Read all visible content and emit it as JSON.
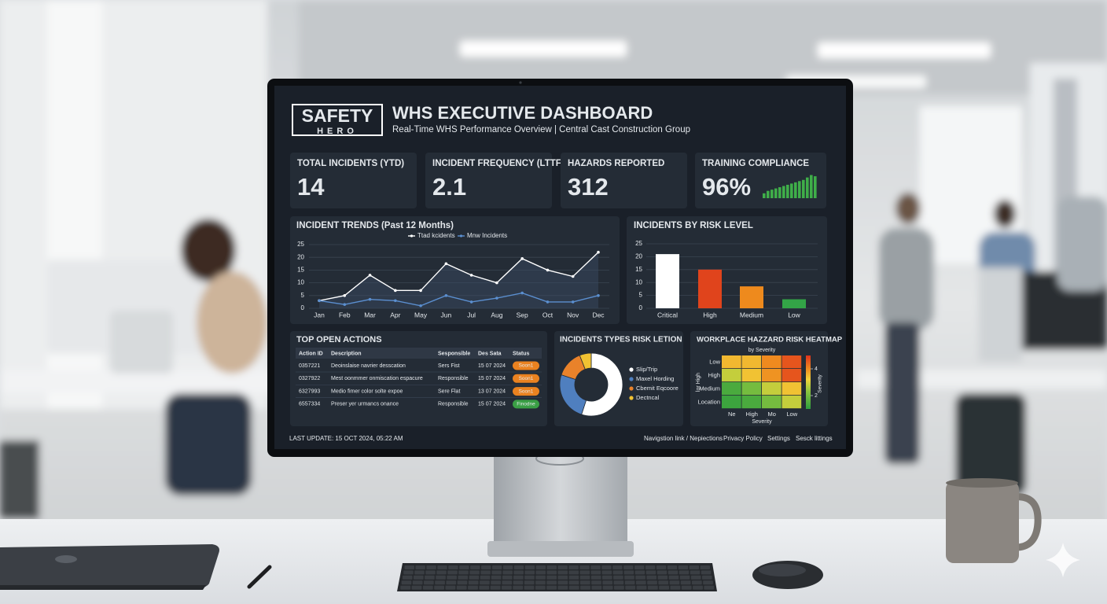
{
  "header": {
    "logo_top": "SAFETY",
    "logo_bottom": "HERO",
    "title": "WHS EXECUTIVE DASHBOARD",
    "subtitle": "Real-Time WHS Performance Overview | Central Cast Construction Group"
  },
  "kpis": [
    {
      "label": "TOTAL INCIDENTS (YTD)",
      "value": "14"
    },
    {
      "label": "INCIDENT FREQUENCY (LTTFR)",
      "value": "2.1"
    },
    {
      "label": "HAZARDS REPORTED",
      "value": "312"
    },
    {
      "label": "TRAINING COMPLIANCE",
      "value": "96%",
      "trend": [
        2,
        3,
        3.5,
        4,
        4.5,
        5,
        5.5,
        6,
        6.5,
        7,
        7.5,
        8.5,
        9.5,
        9
      ],
      "trend_color": "#3fae49"
    }
  ],
  "incident_trends": {
    "type": "line",
    "title": "INCIDENT TRENDS (Past 12 Months)",
    "categories": [
      "Jan",
      "Feb",
      "Mar",
      "Apr",
      "May",
      "Jun",
      "Jul",
      "Aug",
      "Sep",
      "Oct",
      "Nov",
      "Dec"
    ],
    "series": [
      {
        "name": "Ttad kcidents",
        "color": "#ffffff",
        "values": [
          3,
          5,
          13,
          7,
          7,
          17.5,
          13,
          10,
          19.5,
          15,
          12.5,
          22
        ]
      },
      {
        "name": "Mnw Incidents",
        "color": "#5b8fd0",
        "values": [
          3,
          1.5,
          3.5,
          3,
          1,
          5,
          2.5,
          4,
          6,
          2.5,
          2.5,
          5
        ]
      }
    ],
    "ylim": [
      0,
      25
    ],
    "yticks": [
      0,
      5,
      10,
      15,
      20,
      25
    ],
    "grid": true
  },
  "risk_level": {
    "type": "bar",
    "title": "INCIDENTS BY RISK LEVEL",
    "categories": [
      "Critical",
      "High",
      "Medium",
      "Low"
    ],
    "values": [
      21,
      15,
      8.5,
      3.5
    ],
    "colors": [
      "#ffffff",
      "#e0441c",
      "#ee8a1d",
      "#33a447"
    ],
    "ylim": [
      0,
      25
    ],
    "yticks": [
      0,
      5,
      10,
      15,
      20,
      25
    ],
    "grid": true
  },
  "open_actions": {
    "title": "TOP OPEN ACTIONS",
    "columns": [
      "Action ID",
      "Description",
      "Sesponsible",
      "Des Sata",
      "Status"
    ],
    "rows": [
      [
        "0357221",
        "Deoinslaise navrier desscation",
        "Sers Fist",
        "15 07 2024",
        "Soon1"
      ],
      [
        "0327922",
        "Mest oonmmer onmiscation espacure",
        "Responsible",
        "15 07 2024",
        "Soon1"
      ],
      [
        "6327993",
        "Medio fimer color solte expoe",
        "Sere Flat",
        "13 07 2024",
        "Soon1"
      ],
      [
        "6557334",
        "Preser yer urmancs onance",
        "Responsible",
        "15 07 2024",
        "Finodne"
      ]
    ],
    "status_colors": [
      "#ea8220",
      "#ea8220",
      "#ea8220",
      "#3a9f45"
    ]
  },
  "incident_types": {
    "type": "donut",
    "title": "INCIDENTS TYPES RISK LETION",
    "categories": [
      "Slip/Trip",
      "Maxel Hording",
      "Cbemit Eqcoore",
      "Dectncal"
    ],
    "values": [
      55,
      25,
      14,
      6
    ],
    "colors": [
      "#ffffff",
      "#4f7fbf",
      "#e9822a",
      "#f1c232"
    ]
  },
  "heatmap": {
    "type": "heatmap",
    "title": "WORKPLACE HAZZARD RISK HEATMAP",
    "top_label": "by Severity",
    "x_label": "Severity",
    "y_label": "lor High",
    "colorbar_label": "Severity",
    "rows": [
      "Low",
      "High",
      "Medium",
      "Location"
    ],
    "columns": [
      "Ne",
      "High",
      "Mo",
      "Low"
    ],
    "values": [
      [
        3.5,
        3.5,
        4,
        4.6
      ],
      [
        2.8,
        3.4,
        3.9,
        4.6
      ],
      [
        1.4,
        2,
        2.8,
        3.4
      ],
      [
        1.2,
        1.4,
        2,
        2.8
      ]
    ],
    "zlim": [
      1,
      5
    ],
    "zticks": [
      4,
      2
    ]
  },
  "footer": {
    "last_update": "LAST UPDATE: 15 OCT 2024, 05:22 AM",
    "links": [
      "Navigstion link / Nepiections",
      "Privacy Policy",
      "Settings",
      "Sesck littings"
    ]
  }
}
